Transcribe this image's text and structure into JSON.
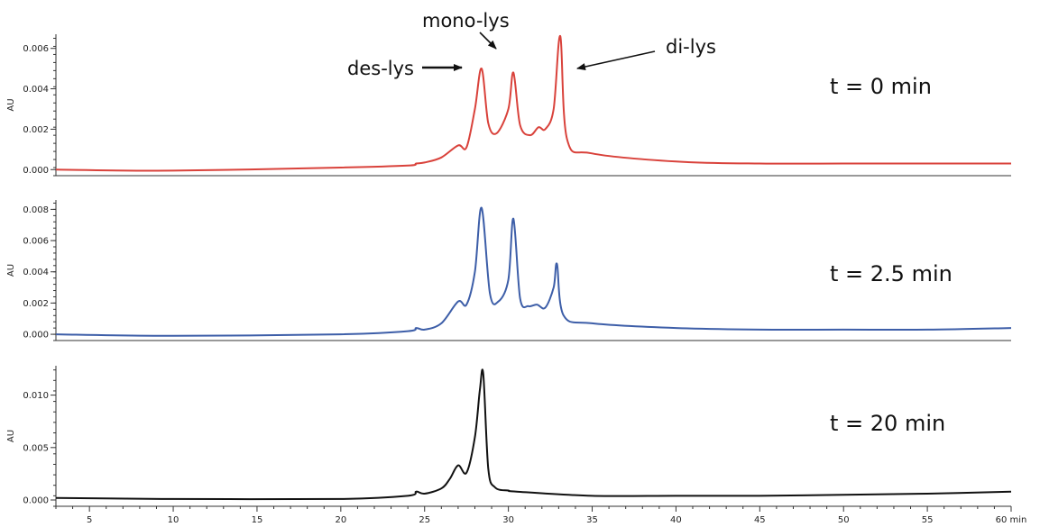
{
  "chart_data": {
    "type": "line",
    "x_unit": "min",
    "xlim": [
      3,
      60
    ],
    "x_ticks": [
      5,
      10,
      15,
      20,
      25,
      30,
      35,
      40,
      45,
      50,
      55,
      60
    ],
    "x_tick_labels": [
      "5",
      "10",
      "15",
      "20",
      "25",
      "30",
      "35",
      "40",
      "45",
      "50",
      "55",
      "60 min"
    ],
    "ylabel": "AU",
    "panels": [
      {
        "label": "t = 0 min",
        "color": "#d9423b",
        "ylim": [
          -0.0003,
          0.0067
        ],
        "y_ticks": [
          0,
          0.002,
          0.004,
          0.006
        ],
        "y_tick_labels": [
          "0.000",
          "0.002",
          "0.004",
          "0.006"
        ],
        "series": [
          {
            "x": [
              3,
              10,
              20,
              24,
              24.5,
              25,
              26,
              27,
              27.5,
              28,
              28.4,
              28.8,
              29.3,
              30,
              30.3,
              30.7,
              31.3,
              31.8,
              32.2,
              32.7,
              33.1,
              33.5,
              35,
              40,
              45,
              50,
              55,
              60
            ],
            "y": [
              0.0,
              -5e-05,
              0.0001,
              0.0002,
              0.0003,
              0.00035,
              0.0006,
              0.0012,
              0.0011,
              0.003,
              0.005,
              0.0023,
              0.0018,
              0.003,
              0.0048,
              0.0022,
              0.0017,
              0.0021,
              0.002,
              0.003,
              0.0066,
              0.0015,
              0.0008,
              0.0004,
              0.0003,
              0.0003,
              0.0003,
              0.0003
            ]
          }
        ]
      },
      {
        "label": "t = 2.5 min",
        "color": "#3d5ea8",
        "ylim": [
          -0.0004,
          0.0086
        ],
        "y_ticks": [
          0,
          0.002,
          0.004,
          0.006,
          0.008
        ],
        "y_tick_labels": [
          "0.000",
          "0.002",
          "0.004",
          "0.006",
          "0.008"
        ],
        "series": [
          {
            "x": [
              3,
              10,
              20,
              24,
              24.5,
              25,
              26,
              27,
              27.5,
              28,
              28.4,
              28.9,
              29.4,
              30,
              30.3,
              30.7,
              31.2,
              31.7,
              32.2,
              32.7,
              32.9,
              33.3,
              35,
              40,
              45,
              50,
              55,
              60
            ],
            "y": [
              0.0,
              -0.0001,
              0.0,
              0.0002,
              0.0004,
              0.0003,
              0.0007,
              0.0021,
              0.0019,
              0.004,
              0.0081,
              0.0026,
              0.0021,
              0.0035,
              0.0074,
              0.0023,
              0.0018,
              0.0019,
              0.0017,
              0.003,
              0.0045,
              0.0012,
              0.0007,
              0.0004,
              0.0003,
              0.0003,
              0.0003,
              0.0004
            ]
          }
        ]
      },
      {
        "label": "t = 20 min",
        "color": "#111111",
        "ylim": [
          -0.0006,
          0.0128
        ],
        "y_ticks": [
          0,
          0.005,
          0.01
        ],
        "y_tick_labels": [
          "0.000",
          "0.005",
          "0.010"
        ],
        "series": [
          {
            "x": [
              3,
              10,
              20,
              24,
              24.5,
              25,
              26,
              26.5,
              27,
              27.5,
              28,
              28.3,
              28.5,
              28.8,
              29.2,
              30,
              30.5,
              35,
              40,
              45,
              50,
              55,
              60
            ],
            "y": [
              0.0002,
              0.0001,
              0.0001,
              0.0004,
              0.0008,
              0.0006,
              0.0011,
              0.002,
              0.0033,
              0.0026,
              0.006,
              0.0105,
              0.012,
              0.003,
              0.0012,
              0.0009,
              0.0008,
              0.0004,
              0.0004,
              0.0004,
              0.0005,
              0.0006,
              0.0008
            ]
          }
        ]
      }
    ],
    "annotations": [
      "des-lys",
      "mono-lys",
      "di-lys"
    ]
  }
}
